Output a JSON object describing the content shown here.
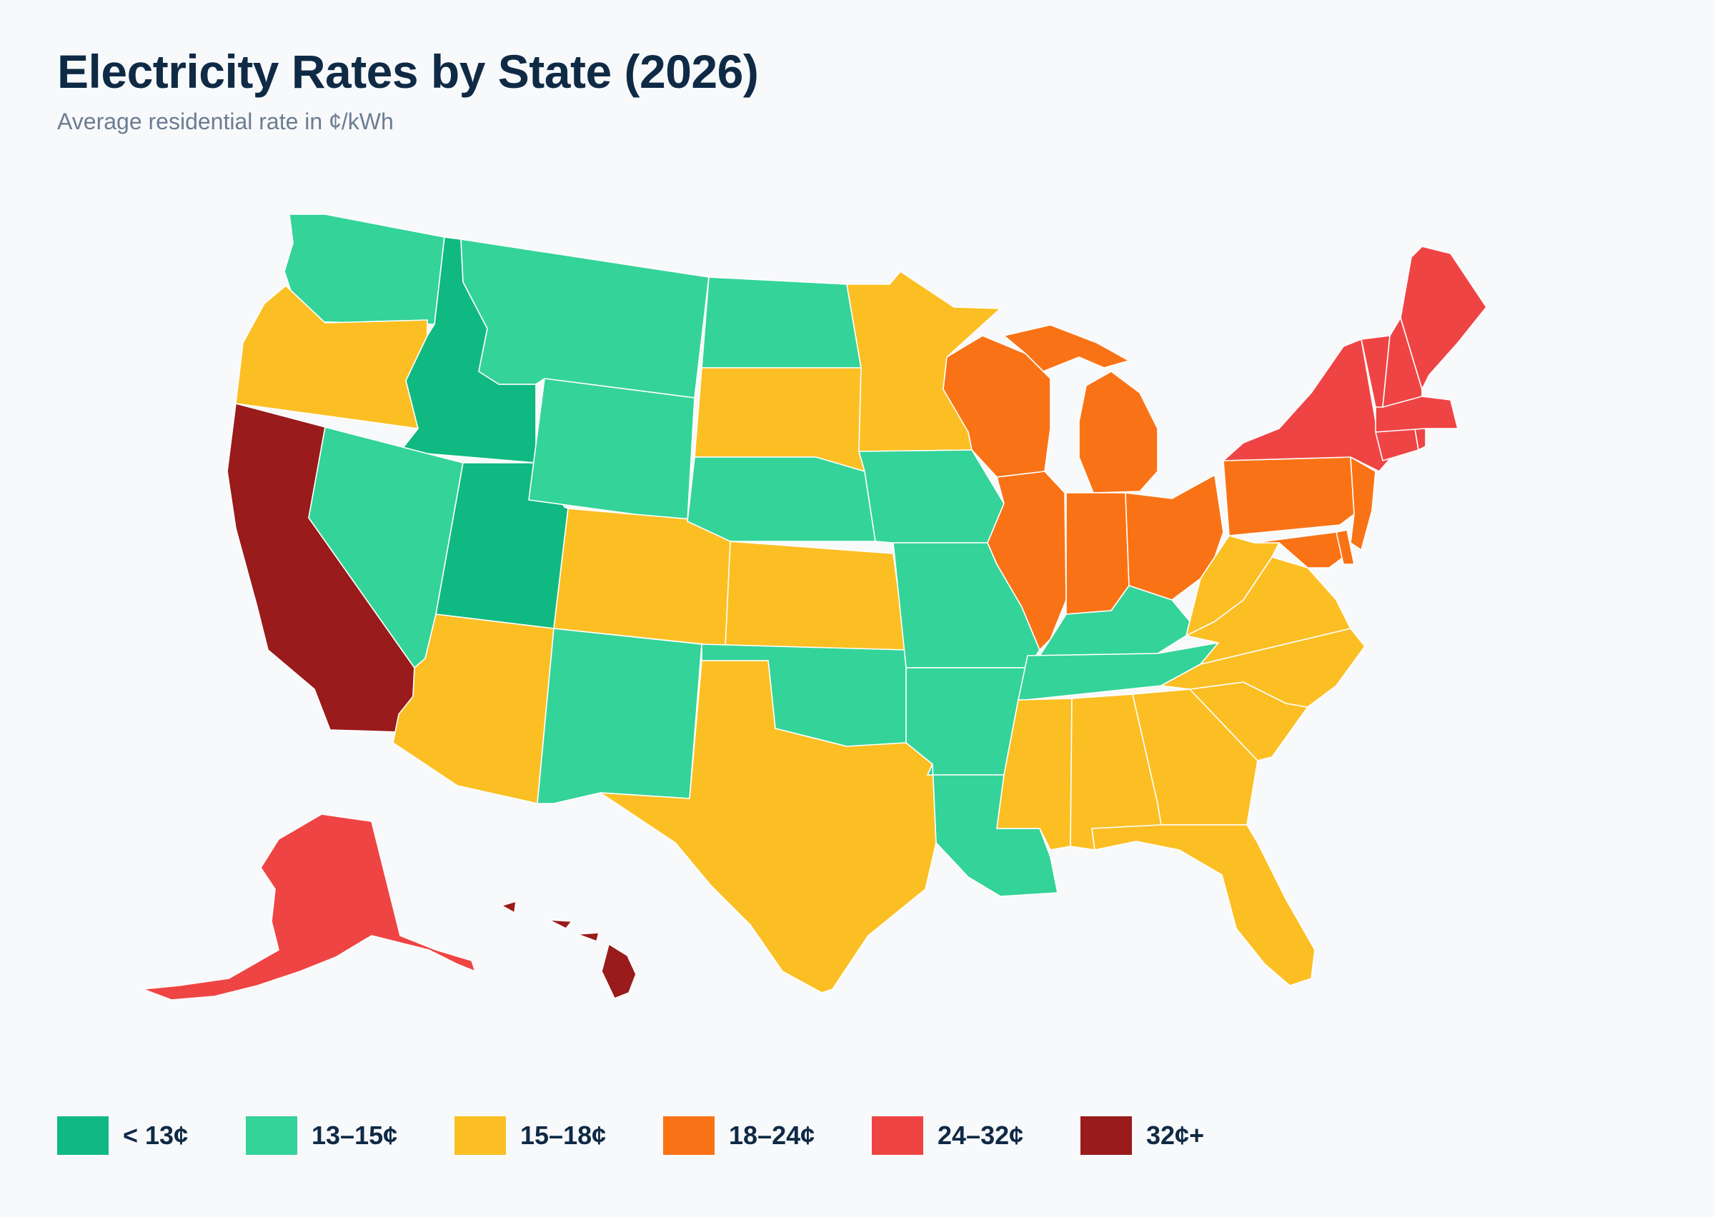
{
  "header": {
    "title": "Electricity Rates by State (2026)",
    "subtitle": "Average residential rate in ¢/kWh"
  },
  "colors": {
    "lt13": "#10b981",
    "13_15": "#34d399",
    "15_18": "#fbbf24",
    "18_24": "#f97316",
    "24_32": "#ef4444",
    "32plus": "#991b1b"
  },
  "legend": [
    {
      "key": "lt13",
      "label": "< 13¢"
    },
    {
      "key": "13_15",
      "label": "13–15¢"
    },
    {
      "key": "15_18",
      "label": "15–18¢"
    },
    {
      "key": "18_24",
      "label": "18–24¢"
    },
    {
      "key": "24_32",
      "label": "24–32¢"
    },
    {
      "key": "32plus",
      "label": "32¢+"
    }
  ],
  "states": [
    {
      "id": "WA",
      "bin": "13_15"
    },
    {
      "id": "OR",
      "bin": "15_18"
    },
    {
      "id": "CA",
      "bin": "32plus"
    },
    {
      "id": "ID",
      "bin": "lt13"
    },
    {
      "id": "NV",
      "bin": "13_15"
    },
    {
      "id": "UT",
      "bin": "lt13"
    },
    {
      "id": "AZ",
      "bin": "15_18"
    },
    {
      "id": "MT",
      "bin": "13_15"
    },
    {
      "id": "WY",
      "bin": "13_15"
    },
    {
      "id": "CO",
      "bin": "15_18"
    },
    {
      "id": "NM",
      "bin": "13_15"
    },
    {
      "id": "ND",
      "bin": "13_15"
    },
    {
      "id": "SD",
      "bin": "15_18"
    },
    {
      "id": "NE",
      "bin": "13_15"
    },
    {
      "id": "KS",
      "bin": "15_18"
    },
    {
      "id": "OK",
      "bin": "13_15"
    },
    {
      "id": "TX",
      "bin": "15_18"
    },
    {
      "id": "MN",
      "bin": "15_18"
    },
    {
      "id": "IA",
      "bin": "13_15"
    },
    {
      "id": "MO",
      "bin": "13_15"
    },
    {
      "id": "AR",
      "bin": "13_15"
    },
    {
      "id": "LA",
      "bin": "13_15"
    },
    {
      "id": "WI",
      "bin": "18_24"
    },
    {
      "id": "IL",
      "bin": "18_24"
    },
    {
      "id": "MI",
      "bin": "18_24"
    },
    {
      "id": "IN",
      "bin": "18_24"
    },
    {
      "id": "OH",
      "bin": "18_24"
    },
    {
      "id": "KY",
      "bin": "13_15"
    },
    {
      "id": "TN",
      "bin": "13_15"
    },
    {
      "id": "MS",
      "bin": "15_18"
    },
    {
      "id": "AL",
      "bin": "15_18"
    },
    {
      "id": "GA",
      "bin": "15_18"
    },
    {
      "id": "FL",
      "bin": "15_18"
    },
    {
      "id": "SC",
      "bin": "15_18"
    },
    {
      "id": "NC",
      "bin": "15_18"
    },
    {
      "id": "VA",
      "bin": "15_18"
    },
    {
      "id": "WV",
      "bin": "15_18"
    },
    {
      "id": "PA",
      "bin": "18_24"
    },
    {
      "id": "MD",
      "bin": "18_24"
    },
    {
      "id": "DE",
      "bin": "18_24"
    },
    {
      "id": "NJ",
      "bin": "18_24"
    },
    {
      "id": "NY",
      "bin": "24_32"
    },
    {
      "id": "CT",
      "bin": "24_32"
    },
    {
      "id": "RI",
      "bin": "24_32"
    },
    {
      "id": "MA",
      "bin": "24_32"
    },
    {
      "id": "VT",
      "bin": "24_32"
    },
    {
      "id": "NH",
      "bin": "24_32"
    },
    {
      "id": "ME",
      "bin": "24_32"
    },
    {
      "id": "AK",
      "bin": "24_32"
    },
    {
      "id": "HI",
      "bin": "32plus"
    }
  ]
}
